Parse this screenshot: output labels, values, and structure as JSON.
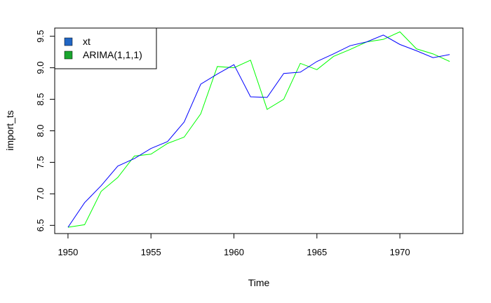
{
  "chart_data": {
    "type": "line",
    "title": "",
    "xlabel": "Time",
    "ylabel": "import_ts",
    "xlim": [
      1949.2,
      1973.8
    ],
    "ylim": [
      6.37,
      9.63
    ],
    "x_ticks": [
      1950,
      1955,
      1960,
      1965,
      1970
    ],
    "y_ticks": [
      6.5,
      7.0,
      7.5,
      8.0,
      8.5,
      9.0,
      9.5
    ],
    "x_tick_labels": [
      "1950",
      "1955",
      "1960",
      "1965",
      "1970"
    ],
    "y_tick_labels": [
      "6.5",
      "7.0",
      "7.5",
      "8.0",
      "8.5",
      "9.0",
      "9.5"
    ],
    "grid": false,
    "legend_position": "top-left",
    "x": [
      1950,
      1951,
      1952,
      1953,
      1954,
      1955,
      1956,
      1957,
      1958,
      1959,
      1960,
      1961,
      1962,
      1963,
      1964,
      1965,
      1966,
      1967,
      1968,
      1969,
      1970,
      1971,
      1972,
      1973
    ],
    "series": [
      {
        "name": "xt",
        "color": "#0000ff",
        "legend_color": "#2166c4",
        "values": [
          6.47,
          6.86,
          7.13,
          7.44,
          7.56,
          7.72,
          7.83,
          8.14,
          8.74,
          8.9,
          9.05,
          8.54,
          8.53,
          8.91,
          8.93,
          9.1,
          9.22,
          9.35,
          9.41,
          9.52,
          9.37,
          9.27,
          9.16,
          9.21
        ]
      },
      {
        "name": "ARIMA(1,1,1)",
        "color": "#00ff00",
        "legend_color": "#1aa52e",
        "values": [
          6.47,
          6.51,
          7.04,
          7.26,
          7.6,
          7.63,
          7.8,
          7.9,
          8.27,
          9.02,
          9.0,
          9.12,
          8.34,
          8.5,
          9.07,
          8.97,
          9.18,
          9.29,
          9.41,
          9.45,
          9.57,
          9.3,
          9.22,
          9.1
        ]
      }
    ]
  }
}
